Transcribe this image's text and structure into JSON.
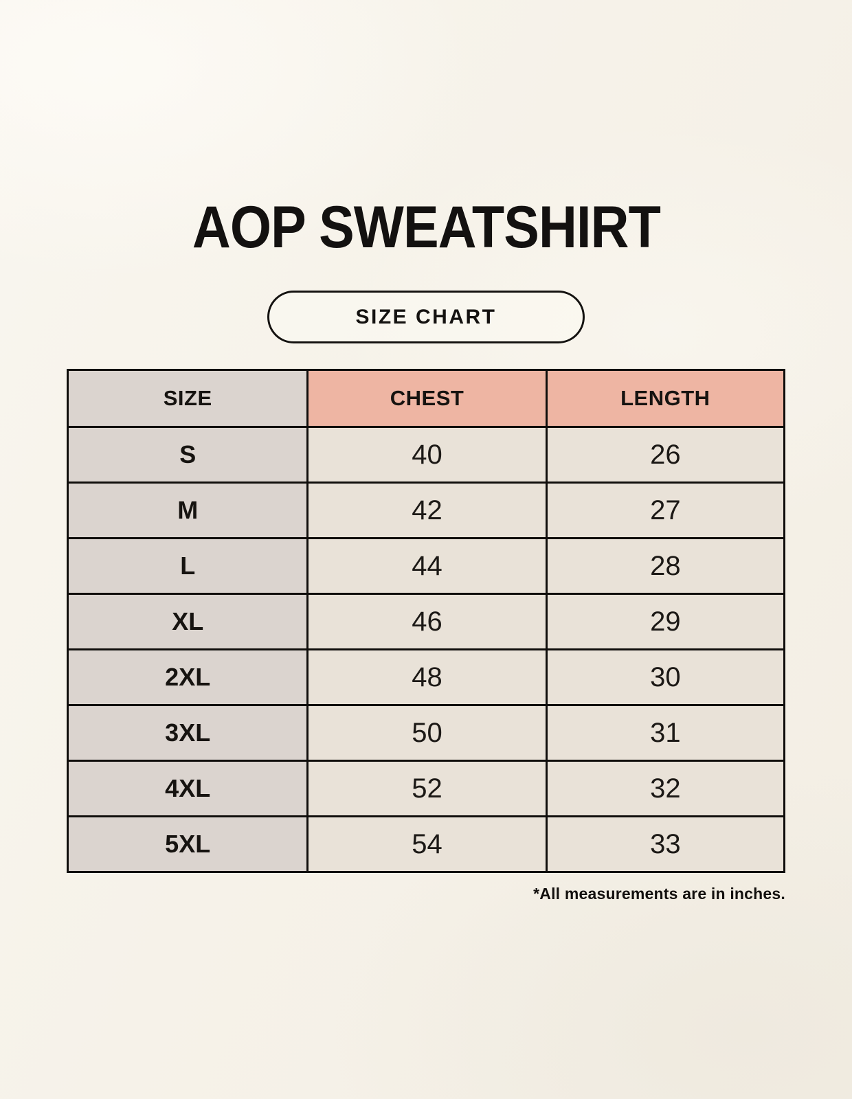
{
  "header": {
    "title": "AOP SWEATSHIRT",
    "badge_label": "SIZE CHART"
  },
  "footnote": "*All measurements are in inches.",
  "colors": {
    "background": "#f6f2e9",
    "header_accent_pink": "#eeb5a3",
    "size_column_gray": "#dbd4cf",
    "data_cell_cream": "#e9e2d8",
    "border_black": "#100e0c",
    "text_black": "#161310"
  },
  "chart_data": {
    "type": "table",
    "title": "AOP SWEATSHIRT",
    "subtitle": "SIZE CHART",
    "unit_note": "*All measurements are in inches.",
    "columns": [
      "SIZE",
      "CHEST",
      "LENGTH"
    ],
    "rows": [
      {
        "size": "S",
        "chest": "40",
        "length": "26"
      },
      {
        "size": "M",
        "chest": "42",
        "length": "27"
      },
      {
        "size": "L",
        "chest": "44",
        "length": "28"
      },
      {
        "size": "XL",
        "chest": "46",
        "length": "29"
      },
      {
        "size": "2XL",
        "chest": "48",
        "length": "30"
      },
      {
        "size": "3XL",
        "chest": "50",
        "length": "31"
      },
      {
        "size": "4XL",
        "chest": "52",
        "length": "32"
      },
      {
        "size": "5XL",
        "chest": "54",
        "length": "33"
      }
    ]
  }
}
